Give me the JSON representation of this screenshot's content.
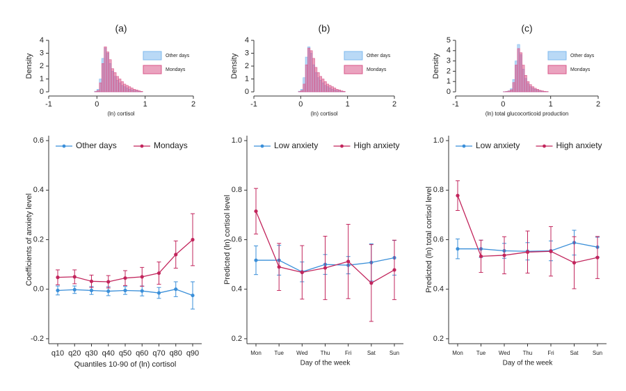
{
  "chart_data": [
    {
      "type": "histogram",
      "title": "(a)",
      "x_label": "(ln) cortisol",
      "y_label": "Density",
      "bins": [
        -0.05,
        0,
        0.05,
        0.1,
        0.15,
        0.2,
        0.25,
        0.3,
        0.35,
        0.4,
        0.45,
        0.5,
        0.55,
        0.6,
        0.65,
        0.7,
        0.75,
        0.8,
        0.85,
        0.9,
        0.95
      ],
      "series": [
        {
          "name": "Other days",
          "color": "#7fb9ee",
          "values": [
            0.05,
            0.2,
            1.0,
            2.6,
            3.4,
            3.0,
            2.2,
            1.6,
            1.2,
            0.9,
            0.7,
            0.5,
            0.4,
            0.3,
            0.2,
            0.15,
            0.1,
            0.08,
            0.05,
            0.03
          ]
        },
        {
          "name": "Mondays",
          "color": "#d9578a",
          "values": [
            0.02,
            0.1,
            0.7,
            2.2,
            3.5,
            3.1,
            2.5,
            1.8,
            1.5,
            1.2,
            1.0,
            0.8,
            0.6,
            0.5,
            0.4,
            0.3,
            0.2,
            0.15,
            0.08,
            0.04
          ]
        }
      ],
      "xlim": [
        -1,
        2
      ],
      "xticks": [
        -1,
        0,
        1,
        2
      ],
      "ylim": [
        0,
        4
      ],
      "yticks": [
        0,
        1,
        2,
        3,
        4
      ],
      "legend": "right"
    },
    {
      "type": "histogram",
      "title": "(b)",
      "x_label": "(ln) cortisol",
      "y_label": "Density",
      "bins": [
        -0.05,
        0,
        0.05,
        0.1,
        0.15,
        0.2,
        0.25,
        0.3,
        0.35,
        0.4,
        0.45,
        0.5,
        0.55,
        0.6,
        0.65,
        0.7,
        0.75,
        0.8,
        0.85,
        0.9,
        0.95
      ],
      "series": [
        {
          "name": "Other days",
          "color": "#7fb9ee",
          "values": [
            0.05,
            0.2,
            1.1,
            2.7,
            3.5,
            3.0,
            2.1,
            1.5,
            1.1,
            0.9,
            0.7,
            0.5,
            0.4,
            0.3,
            0.2,
            0.15,
            0.1,
            0.07,
            0.04,
            0.02
          ]
        },
        {
          "name": "Mondays",
          "color": "#d9578a",
          "values": [
            0.02,
            0.1,
            0.6,
            2.1,
            3.4,
            3.2,
            2.6,
            1.9,
            1.5,
            1.2,
            1.0,
            0.8,
            0.6,
            0.5,
            0.4,
            0.3,
            0.2,
            0.15,
            0.08,
            0.04
          ]
        }
      ],
      "xlim": [
        -1,
        2
      ],
      "xticks": [
        -1,
        0,
        1,
        2
      ],
      "ylim": [
        0,
        4
      ],
      "yticks": [
        0,
        1,
        2,
        3,
        4
      ],
      "legend": "right"
    },
    {
      "type": "histogram",
      "title": "(c)",
      "x_label": "(ln) total glucocorticoid production",
      "y_label": "Density",
      "bins": [
        -0.05,
        0,
        0.05,
        0.1,
        0.15,
        0.2,
        0.25,
        0.3,
        0.35,
        0.4,
        0.45,
        0.5,
        0.55,
        0.6,
        0.65,
        0.7,
        0.75,
        0.8,
        0.85,
        0.9,
        0.95
      ],
      "series": [
        {
          "name": "Other days",
          "color": "#7fb9ee",
          "values": [
            0,
            0.02,
            0.05,
            0.1,
            0.3,
            1.2,
            3.0,
            4.6,
            3.6,
            2.2,
            1.3,
            0.8,
            0.5,
            0.35,
            0.25,
            0.15,
            0.1,
            0.06,
            0.03,
            0.02
          ]
        },
        {
          "name": "Mondays",
          "color": "#d9578a",
          "values": [
            0,
            0.01,
            0.03,
            0.08,
            0.2,
            0.9,
            2.6,
            4.2,
            3.8,
            2.6,
            1.6,
            1.0,
            0.7,
            0.5,
            0.35,
            0.25,
            0.15,
            0.1,
            0.05,
            0.03
          ]
        }
      ],
      "xlim": [
        -1,
        2
      ],
      "xticks": [
        -1,
        0,
        1,
        2
      ],
      "ylim": [
        0,
        5
      ],
      "yticks": [
        0,
        1,
        2,
        3,
        4,
        5
      ],
      "legend": "right"
    },
    {
      "type": "line",
      "x_label": "Quantiles 10-90 of (ln) cortisol",
      "y_label": "Coefficients of anxiety level",
      "categories": [
        "q10",
        "q20",
        "q30",
        "q40",
        "q50",
        "q60",
        "q70",
        "q80",
        "q90"
      ],
      "series": [
        {
          "name": "Other days",
          "color": "#3a8fd9",
          "values": [
            -0.005,
            -0.002,
            -0.005,
            -0.008,
            -0.005,
            -0.007,
            -0.015,
            0.0,
            -0.025
          ],
          "errors": [
            0.018,
            0.015,
            0.016,
            0.018,
            0.016,
            0.02,
            0.022,
            0.03,
            0.055
          ]
        },
        {
          "name": "Mondays",
          "color": "#c2255c",
          "values": [
            0.048,
            0.05,
            0.032,
            0.03,
            0.045,
            0.05,
            0.065,
            0.14,
            0.2
          ],
          "errors": [
            0.03,
            0.028,
            0.025,
            0.025,
            0.03,
            0.038,
            0.045,
            0.055,
            0.105
          ]
        }
      ],
      "ylim": [
        -0.22,
        0.62
      ],
      "yticks": [
        -0.2,
        {
          "value": 0,
          "label": "0.0"
        },
        0.2,
        0.4,
        0.6
      ],
      "legend": "top"
    },
    {
      "type": "line",
      "x_label": "Day of the week",
      "y_label": "Predicted (ln) cortisol level",
      "categories": [
        "Mon",
        "Tue",
        "Wed",
        "Thu",
        "Fri",
        "Sat",
        "Sun"
      ],
      "series": [
        {
          "name": "Low anxiety",
          "color": "#3a8fd9",
          "values": [
            0.517,
            0.517,
            0.47,
            0.5,
            0.497,
            0.508,
            0.527
          ],
          "errors": [
            0.058,
            0.06,
            0.04,
            0.04,
            0.035,
            0.075,
            0.07
          ]
        },
        {
          "name": "High anxiety",
          "color": "#c2255c",
          "values": [
            0.715,
            0.49,
            0.468,
            0.486,
            0.512,
            0.425,
            0.478
          ],
          "errors": [
            0.092,
            0.095,
            0.108,
            0.128,
            0.15,
            0.155,
            0.12
          ]
        }
      ],
      "ylim": [
        0.18,
        1.02
      ],
      "yticks": [
        0.2,
        0.4,
        0.6,
        0.8,
        {
          "value": 1,
          "label": "1.0"
        }
      ],
      "legend": "top"
    },
    {
      "type": "line",
      "x_label": "Day of the week",
      "y_label": "Predicted (ln) total cortisol level",
      "categories": [
        "Mon",
        "Tue",
        "Wed",
        "Thu",
        "Fri",
        "Sat",
        "Sun"
      ],
      "series": [
        {
          "name": "Low anxiety",
          "color": "#3a8fd9",
          "values": [
            0.563,
            0.563,
            0.555,
            0.553,
            0.555,
            0.588,
            0.57
          ],
          "errors": [
            0.04,
            0.035,
            0.03,
            0.035,
            0.04,
            0.05,
            0.04
          ]
        },
        {
          "name": "High anxiety",
          "color": "#c2255c",
          "values": [
            0.778,
            0.533,
            0.537,
            0.55,
            0.553,
            0.507,
            0.528
          ],
          "errors": [
            0.06,
            0.065,
            0.075,
            0.085,
            0.1,
            0.105,
            0.085
          ]
        }
      ],
      "ylim": [
        0.18,
        1.02
      ],
      "yticks": [
        0.2,
        0.4,
        0.6,
        0.8,
        {
          "value": 1,
          "label": "1.0"
        }
      ],
      "legend": "top"
    }
  ]
}
